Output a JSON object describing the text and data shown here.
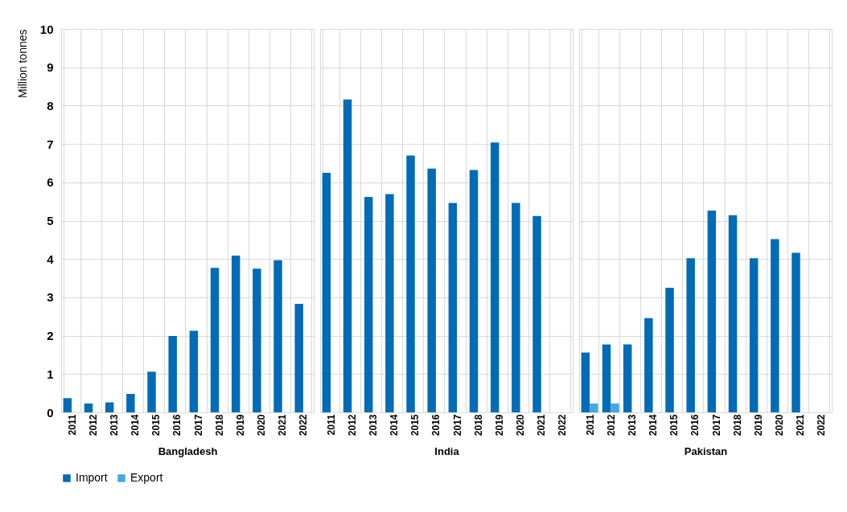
{
  "chart_data": [
    {
      "type": "bar",
      "xlabel": "Bangladesh",
      "ylabel": "Million tonnes",
      "categories": [
        "2011",
        "2012",
        "2013",
        "2014",
        "2015",
        "2016",
        "2017",
        "2018",
        "2019",
        "2020",
        "2021",
        "2022"
      ],
      "series": [
        {
          "name": "Import",
          "color": "#006bb6",
          "values": [
            0.37,
            0.23,
            0.26,
            0.48,
            1.06,
            1.99,
            2.13,
            3.77,
            4.09,
            3.75,
            3.97,
            2.83
          ]
        }
      ],
      "ylim": [
        0,
        10
      ],
      "yticks": [
        0,
        1,
        2,
        3,
        4,
        5,
        6,
        7,
        8,
        9,
        10
      ],
      "grid": true,
      "legend": "bottom"
    },
    {
      "type": "bar",
      "xlabel": "India",
      "categories": [
        "2011",
        "2012",
        "2013",
        "2014",
        "2015",
        "2016",
        "2017",
        "2018",
        "2019",
        "2020",
        "2021",
        "2022"
      ],
      "series": [
        {
          "name": "Import",
          "color": "#006bb6",
          "values": [
            6.25,
            8.16,
            5.62,
            5.69,
            6.7,
            6.36,
            5.46,
            6.32,
            7.04,
            5.46,
            5.12,
            null
          ]
        }
      ],
      "ylim": [
        0,
        10
      ],
      "yticks": [
        0,
        1,
        2,
        3,
        4,
        5,
        6,
        7,
        8,
        9,
        10
      ],
      "grid": true,
      "tick_labels": "x",
      "legend": "bottom"
    },
    {
      "type": "bar",
      "xlabel": "Pakistan",
      "categories": [
        "2011",
        "2012",
        "2013",
        "2014",
        "2015",
        "2016",
        "2017",
        "2018",
        "2019",
        "2020",
        "2021",
        "2022"
      ],
      "series": [
        {
          "name": "Import",
          "color": "#006bb6",
          "values": [
            1.56,
            1.77,
            1.77,
            2.46,
            3.25,
            4.02,
            5.26,
            5.14,
            4.02,
            4.52,
            4.16,
            null
          ]
        },
        {
          "name": "Export",
          "color": "#45a9e0",
          "values": [
            0.23,
            0.23,
            null,
            null,
            null,
            null,
            null,
            null,
            null,
            null,
            null,
            null
          ]
        }
      ],
      "ylim": [
        0,
        10
      ],
      "yticks": [
        0,
        1,
        2,
        3,
        4,
        5,
        6,
        7,
        8,
        9,
        10
      ],
      "grid": true,
      "tick_labels": "x",
      "legend": "bottom"
    }
  ]
}
